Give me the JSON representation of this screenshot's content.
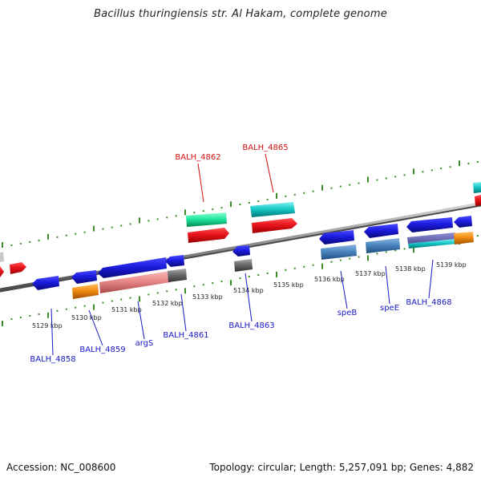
{
  "header": {
    "title": "Bacillus thuringiensis str. Al Hakam, complete genome"
  },
  "footer": {
    "accession": "Accession: NC_008600",
    "summary": "Topology: circular; Length: 5,257,091 bp; Genes: 4,882"
  },
  "colors": {
    "backbone": "#8a8a8a",
    "tick_green": "#3c8c2a",
    "forward_cds": "#e8141b",
    "cds_blue": "#1c1ce0",
    "steelblue_cds": "#4a86c0",
    "gray_cds": "#6a6a6a",
    "pink_cds": "#e88888",
    "orange_cds": "#f08c10",
    "teal_cds": "#18c8c8",
    "mint_cds": "#20e8a0",
    "label_red": "#d01010",
    "label_blue": "#1818c8"
  },
  "scale_labels": [
    "5129 kbp",
    "5130 kbp",
    "5131 kbp",
    "5132 kbp",
    "5133 kbp",
    "5134 kbp",
    "5135 kbp",
    "5136 kbp",
    "5137 kbp",
    "5138 kbp",
    "5139 kbp"
  ],
  "gene_labels": {
    "top": [
      "BALH_4862",
      "BALH_4865"
    ],
    "bottom": [
      "BALH_4858",
      "BALH_4859",
      "argS",
      "BALH_4861",
      "BALH_4863",
      "speB",
      "speE",
      "BALH_4868"
    ]
  }
}
